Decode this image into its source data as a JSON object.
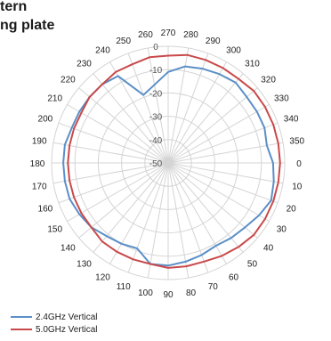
{
  "title_lines": [
    "tern",
    "ng plate"
  ],
  "chart_data": {
    "type": "radar",
    "angle_ticks": [
      "0",
      "10",
      "20",
      "30",
      "40",
      "50",
      "60",
      "70",
      "80",
      "90",
      "100",
      "110",
      "120",
      "130",
      "140",
      "150",
      "160",
      "170",
      "180",
      "190",
      "200",
      "210",
      "220",
      "230",
      "240",
      "250",
      "260",
      "270",
      "280",
      "290",
      "300",
      "310",
      "320",
      "330",
      "340",
      "350"
    ],
    "r_ticks": [
      "-50",
      "-40",
      "-30",
      "-20",
      "-10",
      "0"
    ],
    "r_min": -50,
    "r_max": 0,
    "series": [
      {
        "name": "2.4GHz Vertical",
        "color": "#5b8fc7",
        "values": [
          -5,
          -4,
          -3,
          -5,
          -7,
          -8,
          -9,
          -8,
          -7,
          -6,
          -6,
          -11,
          -10,
          -9,
          -7,
          -6,
          -5,
          -5,
          -5,
          -5,
          -6,
          -6,
          -6,
          -6,
          -7,
          -19,
          -16,
          -11,
          -8,
          -7,
          -6,
          -5,
          -6,
          -6,
          -6,
          -7
        ]
      },
      {
        "name": "5.0GHz Vertical",
        "color": "#c9494a",
        "values": [
          -2,
          -2,
          -2,
          -2,
          -2,
          -3,
          -4,
          -5,
          -5,
          -5,
          -6,
          -6,
          -6,
          -6,
          -7,
          -7,
          -7,
          -7,
          -7,
          -7,
          -7,
          -7,
          -6,
          -6,
          -5,
          -5,
          -4,
          -4,
          -3,
          -3,
          -3,
          -3,
          -2,
          -2,
          -2,
          -2
        ]
      }
    ],
    "grid": true,
    "legend_position": "bottom-left"
  }
}
